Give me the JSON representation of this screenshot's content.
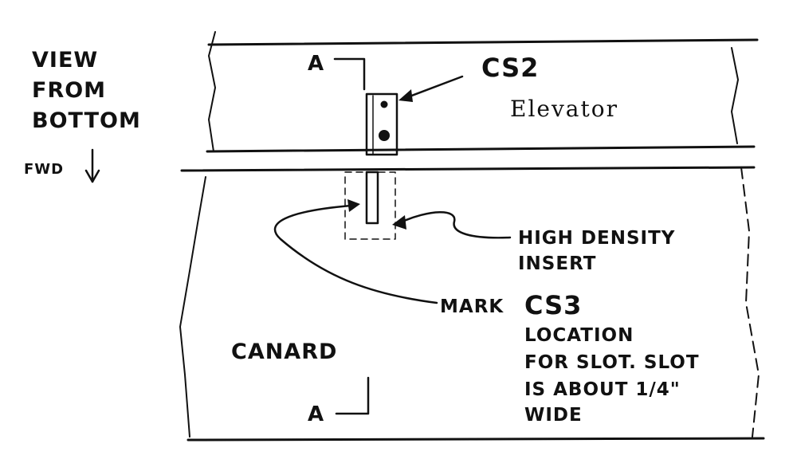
{
  "view_label": [
    "VIEW",
    "FROM",
    "BOTTOM"
  ],
  "fwd_label": "FWD",
  "section_mark": "A",
  "cs2_label": "CS2",
  "elevator_label": "Elevator",
  "insert_label": [
    "HIGH DENSITY",
    "INSERT"
  ],
  "mark_label": "MARK",
  "cs3_label": "CS3",
  "slot_note": [
    "LOCATION",
    "FOR SLOT. SLOT",
    "IS ABOUT 1/4\"",
    "WIDE"
  ],
  "canard_label": "CANARD"
}
